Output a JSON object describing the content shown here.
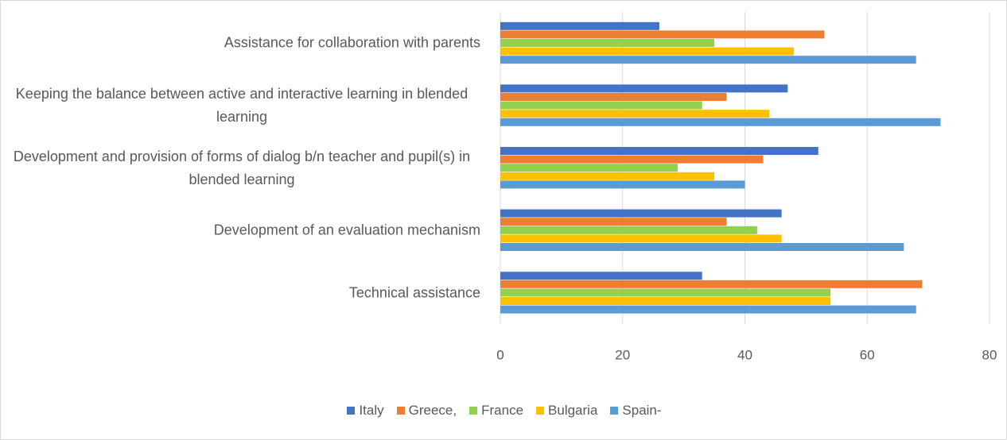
{
  "chart_data": {
    "type": "barh",
    "categories": [
      "Assistance for collaboration with parents",
      "Keeping the balance between active and interactive learning in blended learning",
      "Development and provision of forms of dialog b/n teacher and pupil(s) in blended learning",
      "Development of an evaluation mechanism",
      "Technical assistance"
    ],
    "series": [
      {
        "name": "Italy",
        "color": "#4472c4",
        "values": [
          26,
          47,
          52,
          46,
          33
        ]
      },
      {
        "name": "Greece,",
        "color": "#ed7d31",
        "values": [
          53,
          37,
          43,
          37,
          69
        ]
      },
      {
        "name": "France",
        "color": "#92d050",
        "values": [
          35,
          33,
          29,
          42,
          54
        ]
      },
      {
        "name": "Bulgaria",
        "color": "#ffc000",
        "values": [
          48,
          44,
          35,
          46,
          54
        ]
      },
      {
        "name": "Spain-",
        "color": "#5b9bd5",
        "values": [
          68,
          72,
          40,
          66,
          68
        ]
      }
    ],
    "xlim": [
      0,
      80
    ],
    "xticks": [
      0,
      20,
      40,
      60,
      80
    ],
    "grid": true,
    "legend": "bottom"
  }
}
